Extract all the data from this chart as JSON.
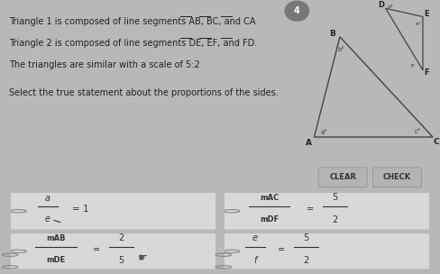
{
  "bg_color": "#b8b8b8",
  "top_panel_color": "#d0d0d0",
  "diag_panel_color": "#dcdcdc",
  "option_panel_color": "#d8d8d8",
  "btn_color": "#b0b0b0",
  "text_color": "#222222",
  "line_color": "#333333",
  "title_lines": [
    "Triangle 1 is composed of line segments AB, BC, and CA",
    "Triangle 2 is composed of line segments DE, EF, and FD.",
    "The triangles are similar with a scale of 5:2"
  ],
  "select_text": "Select the true statement about the proportions of the sides.",
  "clear_btn": "CLEAR",
  "check_btn": "CHECK",
  "tri1": {
    "A": [
      1.2,
      1.8
    ],
    "B": [
      3.0,
      7.8
    ],
    "C": [
      9.5,
      1.8
    ]
  },
  "tri2": {
    "D": [
      6.2,
      9.5
    ],
    "E": [
      8.8,
      9.0
    ],
    "F": [
      8.8,
      5.8
    ]
  },
  "options": [
    {
      "id": 0,
      "text_top": "a",
      "text_bot": "e",
      "eq": "= 1",
      "type": "simple"
    },
    {
      "id": 1,
      "text_top": "mAC",
      "text_bot": "mDF",
      "num": "5",
      "den": "2",
      "type": "fraction"
    },
    {
      "id": 2,
      "text_top": "mAB",
      "text_bot": "mDE",
      "num": "2",
      "den": "5",
      "type": "fraction",
      "cursor": true
    },
    {
      "id": 3,
      "text_top": "e",
      "text_bot": "f",
      "num": "5",
      "den": "2",
      "type": "simple_frac"
    }
  ]
}
